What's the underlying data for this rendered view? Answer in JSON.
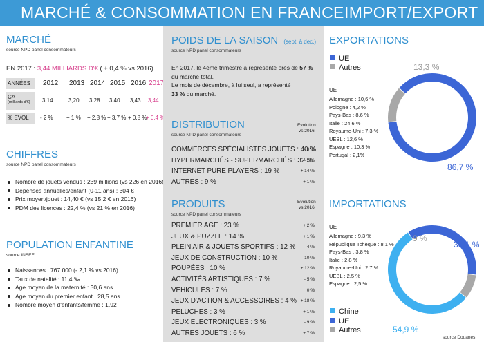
{
  "header": {
    "left_title": "MARCHÉ & CONSOMMATION EN FRANCE",
    "right_title": "IMPORT/EXPORT"
  },
  "marche": {
    "title": "MARCHÉ",
    "source": "source NPD panel consommateurs",
    "summary_prefix": "EN 2017 : ",
    "summary_value": "3,44 MILLIARDS D'€",
    "summary_suffix": " ( + 0,4 % vs 2016)",
    "table": {
      "header_label": "ANNÉES",
      "years": [
        "2012",
        "2013",
        "2014",
        "2015",
        "2016",
        "2017"
      ],
      "ca_label": "CA",
      "ca_unit": "(milliards d'€)",
      "ca_values": [
        "3,14",
        "3,20",
        "3,28",
        "3,40",
        "3,43",
        "3,44"
      ],
      "evol_label": "% EVOL",
      "evol_values": [
        "- 2 %",
        "+ 1 %",
        "+ 2,8 %",
        "+ 3,7 %",
        "+ 0,8 %",
        "+ 0,4 %"
      ]
    }
  },
  "chiffres": {
    "title": "CHIFFRES",
    "source": "source NPD panel consommateurs",
    "items": [
      "Nombre de jouets vendus  : 239 millions (vs 226 en 2016)",
      "Dépenses annuelles/enfant (0-11 ans) : 304 €",
      "Prix moyen/jouet : 14,40 € (vs 15,2 € en 2016)",
      "PDM des licences : 22,4 % (vs 21 % en 2016)"
    ]
  },
  "population": {
    "title": "POPULATION ENFANTINE",
    "source": "source INSEE",
    "items": [
      "Naissances : 767 000 (- 2,1 % vs 2016)",
      "Taux de natalité : 11,4 ‰",
      "Age moyen de la maternité : 30,6 ans",
      "Age moyen du premier enfant  : 28,5 ans",
      "Nombre moyen d'enfants/femme : 1,92"
    ]
  },
  "saison": {
    "title": "POIDS DE LA SAISON",
    "subtitle": "(sept. à dec.)",
    "source": "source NPD panel consommateurs",
    "p1_pre": "En 2017, le 4ème trimestre a représenté près de ",
    "p1_bold": "57 %",
    "p1_post": "du marché total.",
    "p2_pre": "Le mois de décembre, à lui seul, a représenté",
    "p2_bold": "33 %",
    "p2_post": " du marché."
  },
  "distribution": {
    "title": "DISTRIBUTION",
    "source": "source NPD panel consommateurs",
    "evol_header_1": "Evolution",
    "evol_header_2": "vs 2016",
    "rows": [
      {
        "label": "COMMERCES SPÉCIALISTES JOUETS : 40 %",
        "evol": "- 3 %"
      },
      {
        "label": "HYPERMARCHÉS - SUPERMARCHÉS : 32 %",
        "evol": "- 2 %"
      },
      {
        "label": "INTERNET PURE PLAYERS : 19 %",
        "evol": "+ 14 %"
      },
      {
        "label": "AUTRES : 9 %",
        "evol": "+ 1 %"
      }
    ]
  },
  "produits": {
    "title": "PRODUITS",
    "source": "source NPD panel consommateurs",
    "evol_header_1": "Evolution",
    "evol_header_2": "vs 2016",
    "rows": [
      {
        "label": "PREMIER AGE : 23 %",
        "evol": "+ 2 %"
      },
      {
        "label": "JEUX & PUZZLE : 14 %",
        "evol": "+ 1 %"
      },
      {
        "label": "PLEIN AIR & JOUETS SPORTIFS : 12 %",
        "evol": "- 4 %"
      },
      {
        "label": "JEUX DE CONSTRUCTION : 10 %",
        "evol": "- 10 %"
      },
      {
        "label": "POUPÉES : 10 %",
        "evol": "+ 12 %"
      },
      {
        "label": "ACTIVITÉS ARTISTIQUES : 7 %",
        "evol": "- 5 %"
      },
      {
        "label": "VEHICULES : 7 %",
        "evol": "0 %"
      },
      {
        "label": "JEUX D'ACTION & ACCESSOIRES  : 4 %",
        "evol": "+ 18 %"
      },
      {
        "label": "PELUCHES : 3 %",
        "evol": "+ 1 %"
      },
      {
        "label": "JEUX ELECTRONIQUES : 3 %",
        "evol": "- 9 %"
      },
      {
        "label": "AUTRES JOUETS : 6 %",
        "evol": "+ 7 %"
      }
    ]
  },
  "exportations": {
    "title": "EXPORTATIONS",
    "legend": [
      {
        "label": "UE",
        "color": "#3c66d6"
      },
      {
        "label": "Autres",
        "color": "#a8a8a8"
      }
    ],
    "ue_label": "UE :",
    "countries": [
      "Allemagne : 10,6 %",
      "Pologne : 4,2 %",
      "Pays-Bas : 8,6 %",
      "Italie : 24,6 %",
      "Royaume-Uni : 7,3 %",
      "UEBL : 12,6 %",
      "Espagne : 10,3 %",
      "Portugal : 2,1%"
    ]
  },
  "importations": {
    "title": "IMPORTATIONS",
    "ue_label": "UE :",
    "countries": [
      "Allemagne : 9,3 %",
      "République Tchèque : 8,1 %",
      "Pays-Bas : 3,8 %",
      "Italie : 2,8 %",
      "Royaume-Uni : 2,7 %",
      "UEBL : 2,5 %",
      "Espagne : 2,5 %"
    ],
    "legend": [
      {
        "label": "Chine",
        "color": "#3eb0f0"
      },
      {
        "label": "UE",
        "color": "#3c66d6"
      },
      {
        "label": "Autres",
        "color": "#a8a8a8"
      }
    ],
    "source": "source Douanes"
  },
  "chart_data": [
    {
      "type": "pie",
      "categories": [
        "UE",
        "Autres"
      ],
      "values": [
        86.7,
        13.3
      ],
      "data_labels": [
        "86,7 %",
        "13,3 %"
      ],
      "colors": [
        "#3c66d6",
        "#a8a8a8"
      ]
    },
    {
      "type": "pie",
      "categories": [
        "Chine",
        "UE",
        "Autres"
      ],
      "values": [
        54.9,
        36.1,
        9
      ],
      "data_labels": [
        "54,9 %",
        "36,1 %",
        "9 %"
      ],
      "colors": [
        "#3eb0f0",
        "#3c66d6",
        "#a8a8a8"
      ]
    }
  ]
}
